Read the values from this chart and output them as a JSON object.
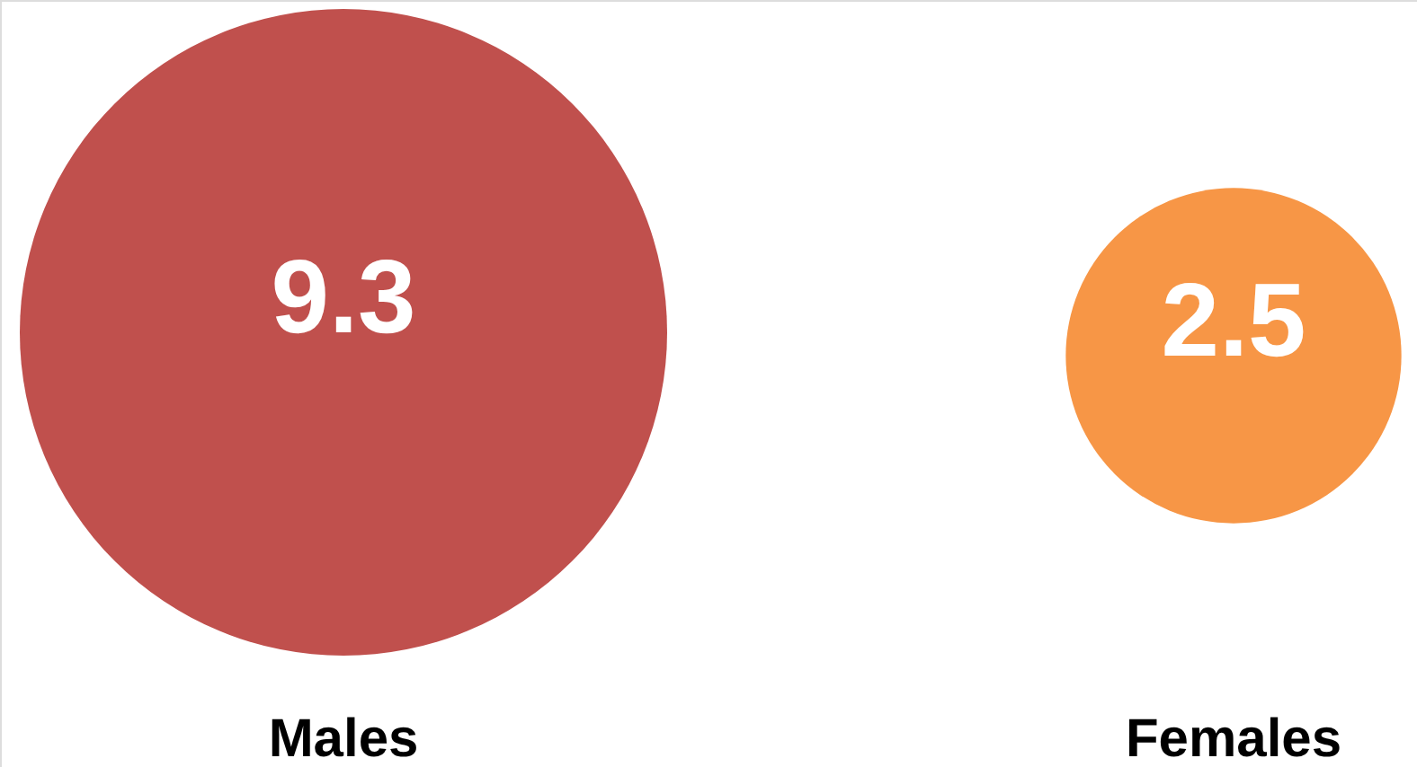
{
  "chart_data": {
    "type": "other",
    "categories": [
      "Males",
      "Females"
    ],
    "values": [
      9.3,
      2.5
    ],
    "colors": [
      "#c0504d",
      "#f79646"
    ],
    "data_labels": true
  }
}
